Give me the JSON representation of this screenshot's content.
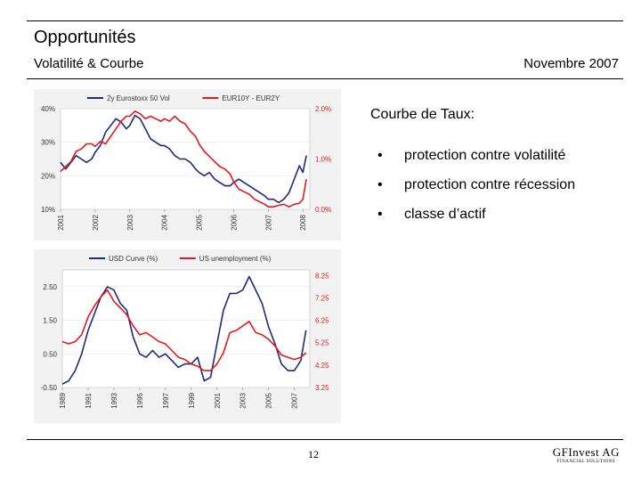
{
  "header": {
    "title": "Opportunités",
    "subtitle": "Volatilité & Courbe",
    "date": "Novembre 2007"
  },
  "bullets": {
    "title": "Courbe de Taux:",
    "marker": "•",
    "items": [
      "protection contre volatilité",
      "protection contre récession",
      "classe d’actif"
    ]
  },
  "footer": {
    "page": "12",
    "logo": "GFInvest AG",
    "logo_sub": "FINANCIAL SOLUTIONS"
  },
  "chart_data": [
    {
      "type": "line",
      "x_ticks": [
        "2001",
        "2002",
        "2003",
        "2004",
        "2005",
        "2006",
        "2007",
        "2008"
      ],
      "xlim": [
        2001,
        2008.2
      ],
      "left_axis": {
        "ticks": [
          "10%",
          "20%",
          "30%",
          "40%"
        ],
        "values": [
          10,
          20,
          30,
          40
        ],
        "ylim": [
          10,
          40
        ]
      },
      "right_axis": {
        "ticks": [
          "0.0%",
          "1.0%",
          "2.0%"
        ],
        "values": [
          0,
          1,
          2
        ],
        "ylim": [
          0,
          2
        ]
      },
      "colors": {
        "left": "#1f2a7a",
        "right": "#e41a1c"
      },
      "series": [
        {
          "name": "2y Eurostoxx 50 Vol",
          "axis": "left",
          "x": [
            2001.0,
            2001.15,
            2001.3,
            2001.45,
            2001.6,
            2001.75,
            2001.9,
            2002.0,
            2002.15,
            2002.3,
            2002.45,
            2002.6,
            2002.75,
            2002.9,
            2003.0,
            2003.15,
            2003.3,
            2003.45,
            2003.6,
            2003.75,
            2003.9,
            2004.0,
            2004.15,
            2004.3,
            2004.45,
            2004.6,
            2004.75,
            2004.9,
            2005.0,
            2005.15,
            2005.3,
            2005.45,
            2005.6,
            2005.75,
            2005.9,
            2006.0,
            2006.15,
            2006.3,
            2006.45,
            2006.6,
            2006.75,
            2006.9,
            2007.0,
            2007.15,
            2007.3,
            2007.45,
            2007.6,
            2007.75,
            2007.9,
            2008.0,
            2008.1
          ],
          "values": [
            24,
            22,
            24,
            26,
            25,
            24,
            25,
            27,
            29,
            33,
            35,
            37,
            36,
            34,
            35,
            38,
            37,
            34,
            31,
            30,
            29,
            29,
            28,
            26,
            25,
            25,
            24,
            22,
            21,
            20,
            21,
            19,
            18,
            17,
            17,
            18,
            19,
            18,
            17,
            16,
            15,
            14,
            13,
            13,
            12,
            13,
            15,
            19,
            23,
            21,
            26
          ]
        },
        {
          "name": "EUR10Y - EUR2Y",
          "axis": "right",
          "x": [
            2001.0,
            2001.15,
            2001.3,
            2001.45,
            2001.6,
            2001.75,
            2001.9,
            2002.0,
            2002.15,
            2002.3,
            2002.45,
            2002.6,
            2002.75,
            2002.9,
            2003.0,
            2003.15,
            2003.3,
            2003.45,
            2003.6,
            2003.75,
            2003.9,
            2004.0,
            2004.15,
            2004.3,
            2004.45,
            2004.6,
            2004.75,
            2004.9,
            2005.0,
            2005.15,
            2005.3,
            2005.45,
            2005.6,
            2005.75,
            2005.9,
            2006.0,
            2006.15,
            2006.3,
            2006.45,
            2006.6,
            2006.75,
            2006.9,
            2007.0,
            2007.15,
            2007.3,
            2007.45,
            2007.6,
            2007.75,
            2007.9,
            2008.0,
            2008.1
          ],
          "values": [
            0.75,
            0.85,
            0.95,
            1.15,
            1.2,
            1.3,
            1.3,
            1.25,
            1.35,
            1.3,
            1.45,
            1.6,
            1.75,
            1.85,
            1.85,
            1.95,
            1.9,
            1.8,
            1.85,
            1.8,
            1.75,
            1.8,
            1.75,
            1.85,
            1.75,
            1.7,
            1.55,
            1.45,
            1.3,
            1.15,
            1.05,
            0.95,
            0.85,
            0.8,
            0.7,
            0.55,
            0.4,
            0.35,
            0.3,
            0.2,
            0.15,
            0.1,
            0.05,
            0.05,
            0.08,
            0.1,
            0.05,
            0.1,
            0.12,
            0.2,
            0.6
          ]
        }
      ]
    },
    {
      "type": "line",
      "x_ticks": [
        "1989",
        "1991",
        "1993",
        "1995",
        "1997",
        "1999",
        "2001",
        "2003",
        "2005",
        "2007"
      ],
      "xlim": [
        1989,
        2008.2
      ],
      "left_axis": {
        "ticks": [
          "-0.50",
          "0.50",
          "1.50",
          "2.50"
        ],
        "values": [
          -0.5,
          0.5,
          1.5,
          2.5
        ],
        "ylim": [
          -0.5,
          3.0
        ]
      },
      "right_axis": {
        "ticks": [
          "3.25",
          "4.25",
          "5.25",
          "6.25",
          "7.25",
          "8.25"
        ],
        "values": [
          3.25,
          4.25,
          5.25,
          6.25,
          7.25,
          8.25
        ],
        "ylim": [
          3.25,
          8.5
        ]
      },
      "colors": {
        "left": "#1f2a7a",
        "right": "#e41a1c"
      },
      "series": [
        {
          "name": "USD Curve (%)",
          "axis": "left",
          "x": [
            1989.0,
            1989.5,
            1990.0,
            1990.5,
            1991.0,
            1991.5,
            1992.0,
            1992.5,
            1993.0,
            1993.5,
            1994.0,
            1994.5,
            1995.0,
            1995.5,
            1996.0,
            1996.5,
            1997.0,
            1997.5,
            1998.0,
            1998.5,
            1999.0,
            1999.5,
            2000.0,
            2000.5,
            2001.0,
            2001.5,
            2002.0,
            2002.5,
            2003.0,
            2003.5,
            2004.0,
            2004.5,
            2005.0,
            2005.5,
            2006.0,
            2006.5,
            2007.0,
            2007.5,
            2007.9
          ],
          "values": [
            -0.4,
            -0.3,
            0.0,
            0.5,
            1.2,
            1.7,
            2.2,
            2.5,
            2.4,
            2.0,
            1.8,
            1.0,
            0.5,
            0.4,
            0.6,
            0.4,
            0.5,
            0.3,
            0.1,
            0.2,
            0.2,
            0.4,
            -0.3,
            -0.2,
            0.8,
            1.8,
            2.3,
            2.3,
            2.4,
            2.8,
            2.4,
            2.0,
            1.3,
            0.8,
            0.2,
            0.0,
            0.0,
            0.3,
            1.2
          ]
        },
        {
          "name": "US unemployment (%)",
          "axis": "right",
          "x": [
            1989.0,
            1989.5,
            1990.0,
            1990.5,
            1991.0,
            1991.5,
            1992.0,
            1992.5,
            1993.0,
            1993.5,
            1994.0,
            1994.5,
            1995.0,
            1995.5,
            1996.0,
            1996.5,
            1997.0,
            1997.5,
            1998.0,
            1998.5,
            1999.0,
            1999.5,
            2000.0,
            2000.5,
            2001.0,
            2001.5,
            2002.0,
            2002.5,
            2003.0,
            2003.5,
            2004.0,
            2004.5,
            2005.0,
            2005.5,
            2006.0,
            2006.5,
            2007.0,
            2007.5,
            2007.9
          ],
          "values": [
            5.3,
            5.2,
            5.3,
            5.6,
            6.4,
            6.9,
            7.3,
            7.6,
            7.1,
            6.8,
            6.5,
            6.0,
            5.6,
            5.7,
            5.5,
            5.3,
            5.2,
            4.9,
            4.6,
            4.5,
            4.3,
            4.2,
            4.0,
            4.0,
            4.3,
            4.8,
            5.7,
            5.8,
            6.0,
            6.2,
            5.7,
            5.6,
            5.4,
            5.1,
            4.7,
            4.6,
            4.5,
            4.6,
            4.8
          ]
        }
      ]
    }
  ]
}
